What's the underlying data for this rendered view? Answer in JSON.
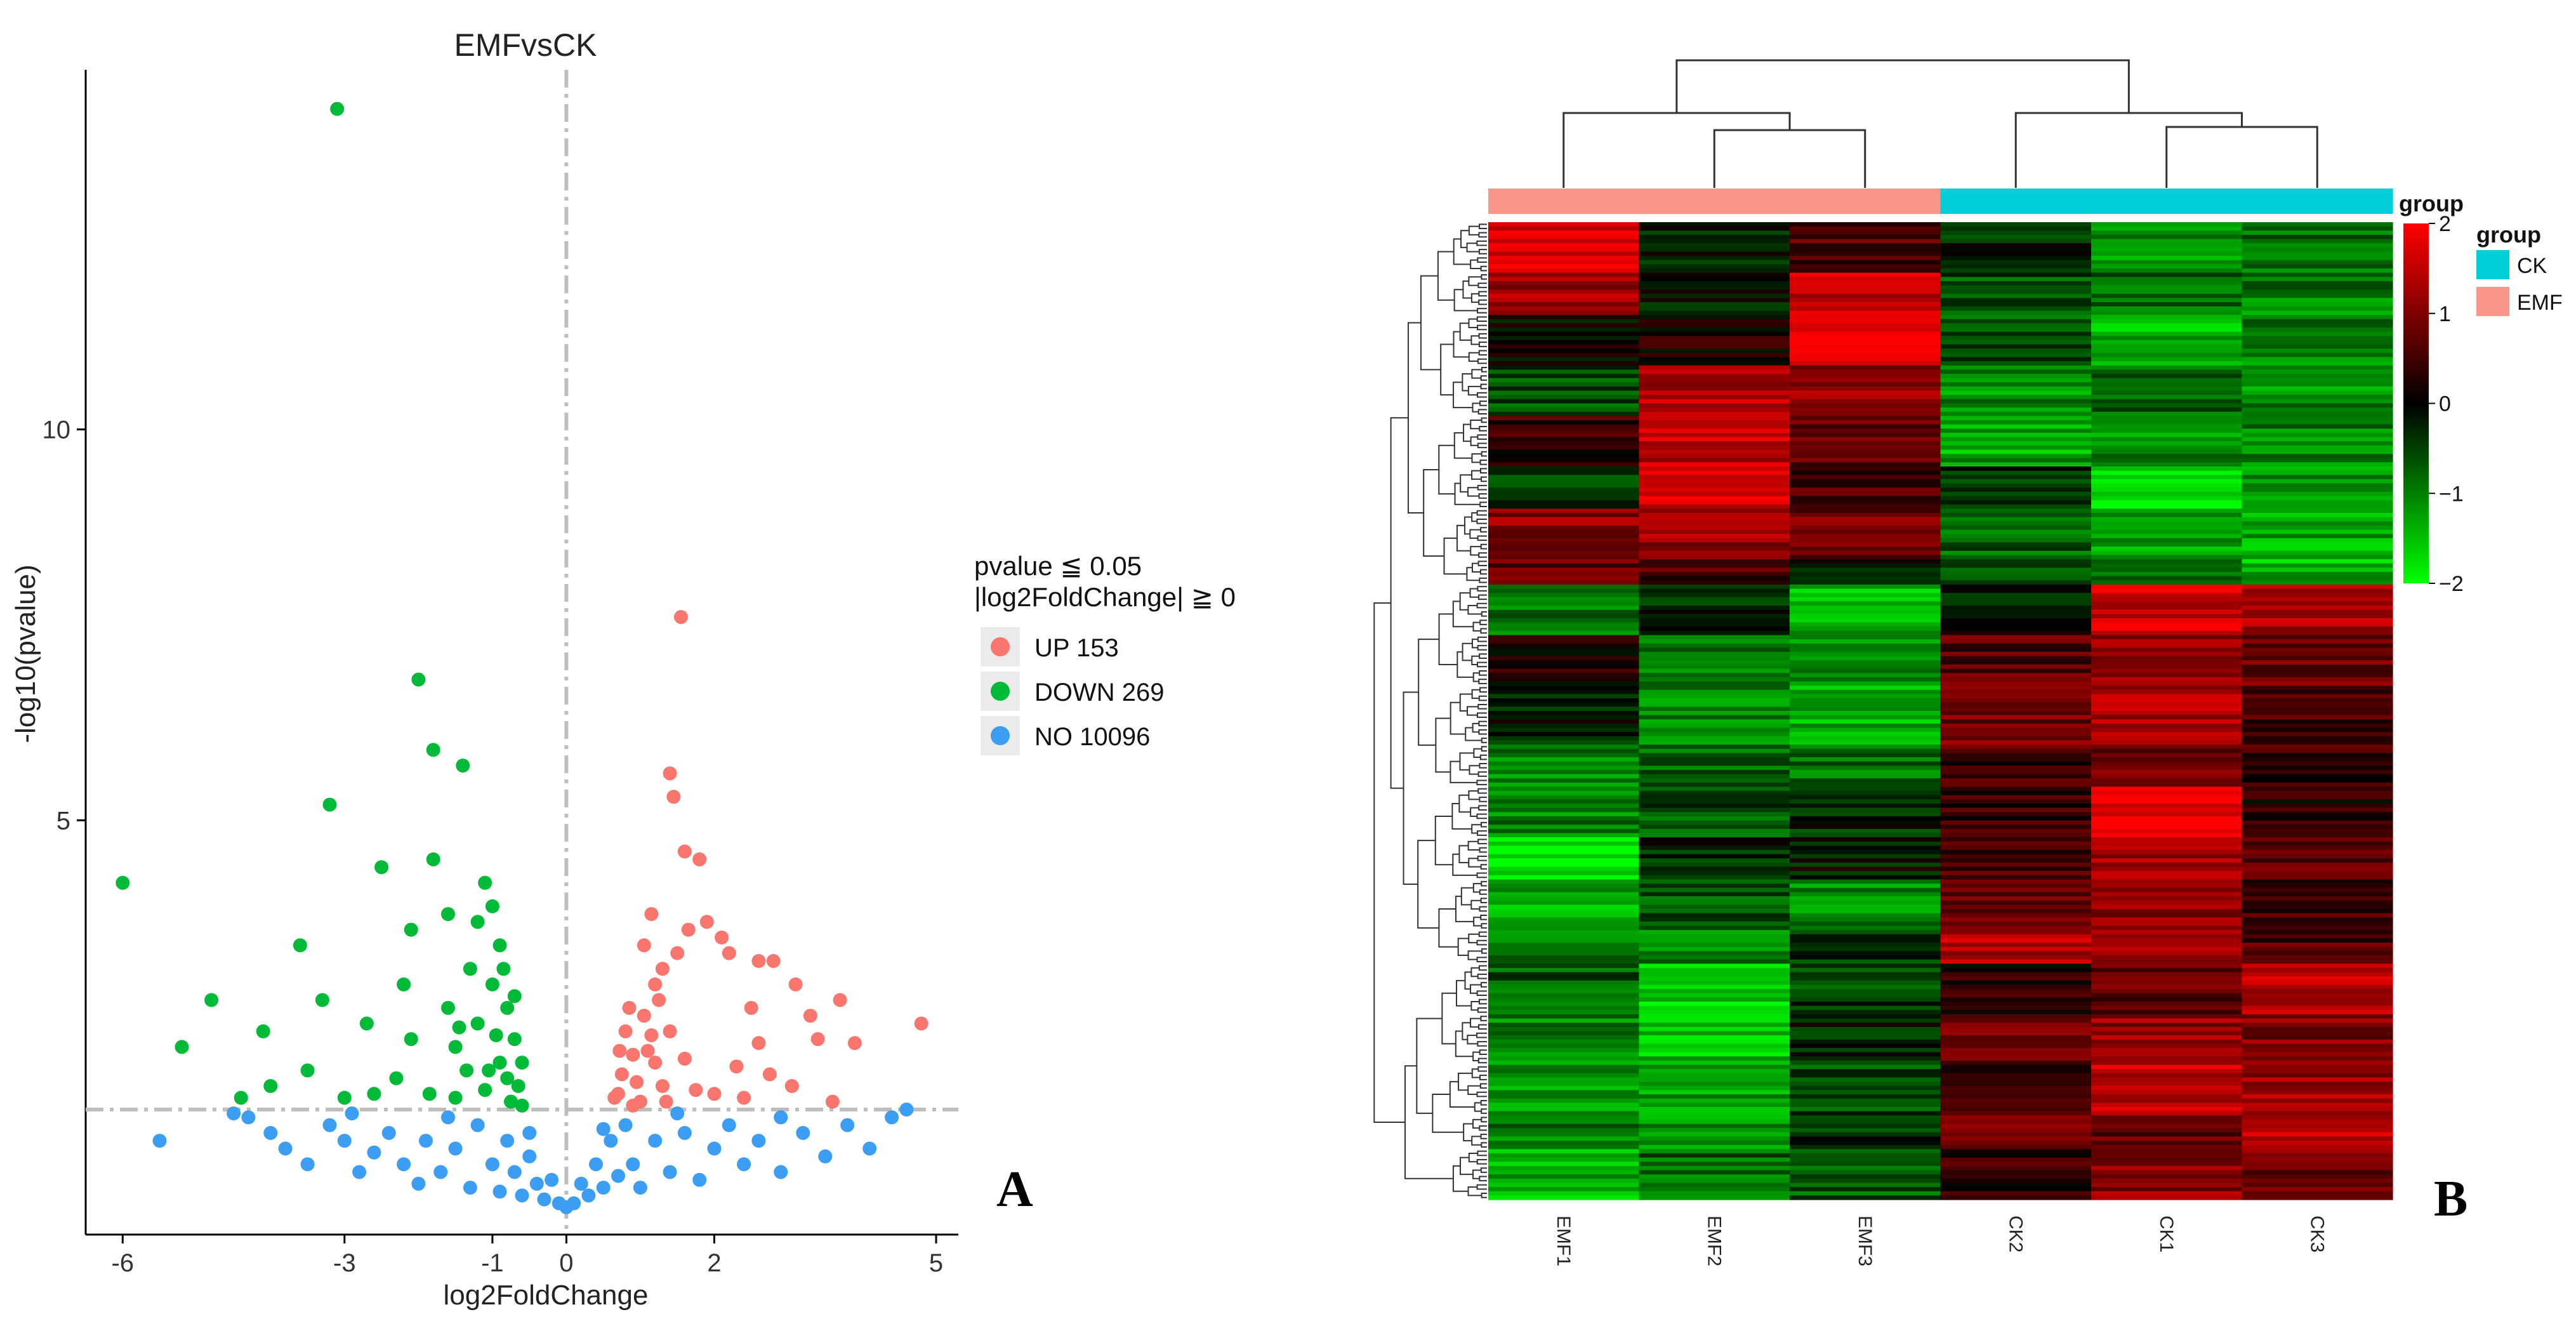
{
  "chart_data": [
    {
      "type": "scatter",
      "panel": "A",
      "title": "EMFvsCK",
      "xlabel": "log2FoldChange",
      "ylabel": "-log10(pvalue)",
      "xlim": [
        -6.5,
        5.3
      ],
      "ylim": [
        -0.3,
        14.6
      ],
      "xticks": [
        -6,
        -3,
        -1,
        0,
        2,
        5
      ],
      "xtick_labels": [
        "-6",
        "-3",
        "-1",
        "0",
        "2",
        "5"
      ],
      "yticks": [
        5,
        10
      ],
      "ytick_labels": [
        "5",
        "10"
      ],
      "thresholds": {
        "pvalue_line_y": 1.3,
        "fold_change_line_x": 0
      },
      "grid": false,
      "legend": {
        "title_line1": "pvalue ≦ 0.05",
        "title_line2": "|log2FoldChange| ≧ 0",
        "entries": [
          {
            "label": "UP 153",
            "color": "#F8766D"
          },
          {
            "label": "DOWN 269",
            "color": "#00BA38"
          },
          {
            "label": "NO 10096",
            "color": "#3C9EF2"
          }
        ],
        "placement": "right"
      },
      "series": [
        {
          "name": "UP",
          "color": "#F8766D",
          "points": [
            [
              1.55,
              7.6
            ],
            [
              1.4,
              5.6
            ],
            [
              1.45,
              5.3
            ],
            [
              1.6,
              4.6
            ],
            [
              1.8,
              4.5
            ],
            [
              1.15,
              3.8
            ],
            [
              1.9,
              3.7
            ],
            [
              2.1,
              3.5
            ],
            [
              2.2,
              3.3
            ],
            [
              1.5,
              3.3
            ],
            [
              1.65,
              3.6
            ],
            [
              2.6,
              3.2
            ],
            [
              2.8,
              3.2
            ],
            [
              3.1,
              2.9
            ],
            [
              3.7,
              2.7
            ],
            [
              4.8,
              2.4
            ],
            [
              2.5,
              2.6
            ],
            [
              3.3,
              2.5
            ],
            [
              1.3,
              3.1
            ],
            [
              1.05,
              3.4
            ],
            [
              2.6,
              2.15
            ],
            [
              3.4,
              2.2
            ],
            [
              3.9,
              2.15
            ],
            [
              2.3,
              1.85
            ],
            [
              2.75,
              1.75
            ],
            [
              3.05,
              1.6
            ],
            [
              2.0,
              1.5
            ],
            [
              2.4,
              1.45
            ],
            [
              1.75,
              1.55
            ],
            [
              3.6,
              1.4
            ],
            [
              0.8,
              2.3
            ],
            [
              0.9,
              2.0
            ],
            [
              0.75,
              1.75
            ],
            [
              0.7,
              1.5
            ],
            [
              0.95,
              1.65
            ],
            [
              1.05,
              2.5
            ],
            [
              1.15,
              2.25
            ],
            [
              1.2,
              1.9
            ],
            [
              1.3,
              1.6
            ],
            [
              0.85,
              2.6
            ],
            [
              1.0,
              1.4
            ],
            [
              1.25,
              2.7
            ],
            [
              0.65,
              1.45
            ],
            [
              0.9,
              1.35
            ],
            [
              1.35,
              1.4
            ],
            [
              1.1,
              2.05
            ],
            [
              1.4,
              2.3
            ],
            [
              1.6,
              1.95
            ],
            [
              1.2,
              2.9
            ],
            [
              0.72,
              2.05
            ]
          ]
        },
        {
          "name": "DOWN",
          "color": "#00BA38",
          "points": [
            [
              -3.1,
              14.1
            ],
            [
              -2.0,
              6.8
            ],
            [
              -1.8,
              5.9
            ],
            [
              -1.4,
              5.7
            ],
            [
              -3.2,
              5.2
            ],
            [
              -6.0,
              4.2
            ],
            [
              -2.5,
              4.4
            ],
            [
              -1.8,
              4.5
            ],
            [
              -1.1,
              4.2
            ],
            [
              -1.0,
              3.9
            ],
            [
              -1.2,
              3.7
            ],
            [
              -2.1,
              3.6
            ],
            [
              -1.6,
              3.8
            ],
            [
              -3.6,
              3.4
            ],
            [
              -0.9,
              3.4
            ],
            [
              -4.8,
              2.7
            ],
            [
              -3.3,
              2.7
            ],
            [
              -2.7,
              2.4
            ],
            [
              -4.1,
              2.3
            ],
            [
              -5.2,
              2.1
            ],
            [
              -2.1,
              2.2
            ],
            [
              -1.5,
              2.1
            ],
            [
              -1.0,
              2.9
            ],
            [
              -0.8,
              2.6
            ],
            [
              -0.7,
              2.2
            ],
            [
              -0.9,
              1.9
            ],
            [
              -1.2,
              2.4
            ],
            [
              -1.35,
              1.8
            ],
            [
              -0.65,
              1.6
            ],
            [
              -0.75,
              1.4
            ],
            [
              -1.1,
              1.55
            ],
            [
              -1.5,
              1.45
            ],
            [
              -1.85,
              1.5
            ],
            [
              -2.3,
              1.7
            ],
            [
              -2.6,
              1.5
            ],
            [
              -3.5,
              1.8
            ],
            [
              -4.0,
              1.6
            ],
            [
              -4.4,
              1.45
            ],
            [
              -0.6,
              1.9
            ],
            [
              -0.85,
              3.1
            ],
            [
              -1.3,
              3.1
            ],
            [
              -0.95,
              2.25
            ],
            [
              -0.7,
              2.75
            ],
            [
              -1.05,
              1.8
            ],
            [
              -1.6,
              2.6
            ],
            [
              -2.2,
              2.9
            ],
            [
              -3.0,
              1.45
            ],
            [
              -0.6,
              1.35
            ],
            [
              -0.8,
              1.7
            ],
            [
              -1.45,
              2.35
            ]
          ]
        },
        {
          "name": "NO",
          "color": "#3C9EF2",
          "points": [
            [
              -5.5,
              0.9
            ],
            [
              -4.3,
              1.2
            ],
            [
              -4.0,
              1.0
            ],
            [
              -3.8,
              0.8
            ],
            [
              -3.5,
              0.6
            ],
            [
              -3.2,
              1.1
            ],
            [
              -3.0,
              0.9
            ],
            [
              -2.8,
              0.5
            ],
            [
              -2.6,
              0.75
            ],
            [
              -2.4,
              1.0
            ],
            [
              -2.2,
              0.6
            ],
            [
              -2.0,
              0.35
            ],
            [
              -1.9,
              0.9
            ],
            [
              -1.7,
              0.5
            ],
            [
              -1.5,
              0.8
            ],
            [
              -1.3,
              0.3
            ],
            [
              -1.2,
              1.1
            ],
            [
              -1.0,
              0.6
            ],
            [
              -0.9,
              0.25
            ],
            [
              -0.8,
              0.9
            ],
            [
              -0.7,
              0.5
            ],
            [
              -0.6,
              0.2
            ],
            [
              -0.5,
              0.7
            ],
            [
              -0.4,
              0.35
            ],
            [
              -0.3,
              0.15
            ],
            [
              -0.2,
              0.4
            ],
            [
              -0.1,
              0.1
            ],
            [
              0.0,
              0.05
            ],
            [
              0.1,
              0.1
            ],
            [
              0.2,
              0.35
            ],
            [
              0.3,
              0.2
            ],
            [
              0.4,
              0.6
            ],
            [
              0.5,
              0.3
            ],
            [
              0.6,
              0.9
            ],
            [
              0.7,
              0.45
            ],
            [
              0.8,
              1.1
            ],
            [
              0.9,
              0.6
            ],
            [
              1.0,
              0.3
            ],
            [
              1.2,
              0.9
            ],
            [
              1.4,
              0.5
            ],
            [
              1.6,
              1.0
            ],
            [
              1.8,
              0.4
            ],
            [
              2.0,
              0.8
            ],
            [
              2.2,
              1.1
            ],
            [
              2.4,
              0.6
            ],
            [
              2.6,
              0.9
            ],
            [
              2.9,
              0.5
            ],
            [
              3.2,
              1.0
            ],
            [
              3.5,
              0.7
            ],
            [
              3.8,
              1.1
            ],
            [
              4.1,
              0.8
            ],
            [
              4.4,
              1.2
            ],
            [
              4.6,
              1.3
            ],
            [
              -1.6,
              1.2
            ],
            [
              1.5,
              1.25
            ],
            [
              -2.9,
              1.25
            ],
            [
              2.9,
              1.2
            ],
            [
              -0.5,
              1.0
            ],
            [
              0.5,
              1.05
            ],
            [
              -4.5,
              1.25
            ]
          ]
        }
      ],
      "panel_label": "A"
    },
    {
      "type": "heatmap",
      "panel": "B",
      "columns": [
        "EMF1",
        "EMF2",
        "EMF3",
        "CK2",
        "CK1",
        "CK3"
      ],
      "column_groups": [
        "EMF",
        "EMF",
        "EMF",
        "CK",
        "CK",
        "CK"
      ],
      "group_colors": {
        "CK": "#00CED8",
        "EMF": "#F8968A"
      },
      "group_legend": {
        "title": "group",
        "entries": [
          {
            "label": "CK"
          },
          {
            "label": "EMF"
          }
        ]
      },
      "colorbar": {
        "title": "group",
        "range": [
          -2,
          2
        ],
        "ticks": [
          2,
          1,
          0,
          -1,
          -2
        ],
        "tick_labels": [
          "2",
          "1",
          "0",
          "−1",
          "−2"
        ],
        "low_color": "#00FF00",
        "mid_color": "#000000",
        "high_color": "#FF0000"
      },
      "column_dendrogram": "((EMF1,(EMF2,EMF3)),(CK2,(CK1,CK3)))",
      "row_clusters": [
        {
          "rows": 12,
          "values": [
            1.8,
            -0.2,
            0.6,
            -0.3,
            -1.2,
            -0.9
          ]
        },
        {
          "rows": 10,
          "values": [
            1.3,
            -0.1,
            1.6,
            -0.6,
            -0.8,
            -1.0
          ]
        },
        {
          "rows": 12,
          "values": [
            0.1,
            0.2,
            1.9,
            -0.7,
            -1.4,
            -1.0
          ]
        },
        {
          "rows": 12,
          "values": [
            -0.6,
            1.4,
            1.2,
            -1.1,
            -0.8,
            -1.1
          ]
        },
        {
          "rows": 12,
          "values": [
            0.4,
            1.5,
            0.8,
            -1.3,
            -1.1,
            -1.0
          ]
        },
        {
          "rows": 10,
          "values": [
            -0.4,
            1.7,
            0.6,
            -0.4,
            -1.6,
            -1.2
          ]
        },
        {
          "rows": 12,
          "values": [
            1.1,
            1.2,
            0.9,
            -0.8,
            -1.2,
            -1.3
          ]
        },
        {
          "rows": 6,
          "values": [
            0.7,
            0.6,
            -0.2,
            -0.6,
            -0.9,
            -1.4
          ]
        },
        {
          "rows": 12,
          "values": [
            -0.9,
            -0.3,
            -1.4,
            -0.2,
            1.6,
            1.4
          ]
        },
        {
          "rows": 12,
          "values": [
            0.2,
            -0.9,
            -1.1,
            0.7,
            1.2,
            0.8
          ]
        },
        {
          "rows": 14,
          "values": [
            -0.2,
            -1.1,
            -1.4,
            0.9,
            1.4,
            0.6
          ]
        },
        {
          "rows": 10,
          "values": [
            -1.0,
            -0.8,
            -0.9,
            0.5,
            0.9,
            0.4
          ]
        },
        {
          "rows": 12,
          "values": [
            -1.0,
            -0.6,
            -0.3,
            0.4,
            2.0,
            0.3
          ]
        },
        {
          "rows": 10,
          "values": [
            -1.9,
            -0.3,
            -0.1,
            0.6,
            1.2,
            0.7
          ]
        },
        {
          "rows": 12,
          "values": [
            -1.3,
            -0.6,
            -1.1,
            0.8,
            1.0,
            0.5
          ]
        },
        {
          "rows": 8,
          "values": [
            -0.9,
            -1.0,
            -0.4,
            1.4,
            1.1,
            0.6
          ]
        },
        {
          "rows": 12,
          "values": [
            -0.7,
            -1.6,
            -0.5,
            0.3,
            0.8,
            1.4
          ]
        },
        {
          "rows": 12,
          "values": [
            -1.1,
            -1.5,
            -0.2,
            0.9,
            1.2,
            1.0
          ]
        },
        {
          "rows": 12,
          "values": [
            -1.2,
            -1.3,
            -0.6,
            0.6,
            1.5,
            1.2
          ]
        },
        {
          "rows": 8,
          "values": [
            -1.0,
            -1.2,
            -0.4,
            1.1,
            0.7,
            1.5
          ]
        },
        {
          "rows": 12,
          "values": [
            -1.4,
            -0.8,
            -0.7,
            0.4,
            1.1,
            0.9
          ]
        }
      ],
      "panel_label": "B"
    }
  ]
}
